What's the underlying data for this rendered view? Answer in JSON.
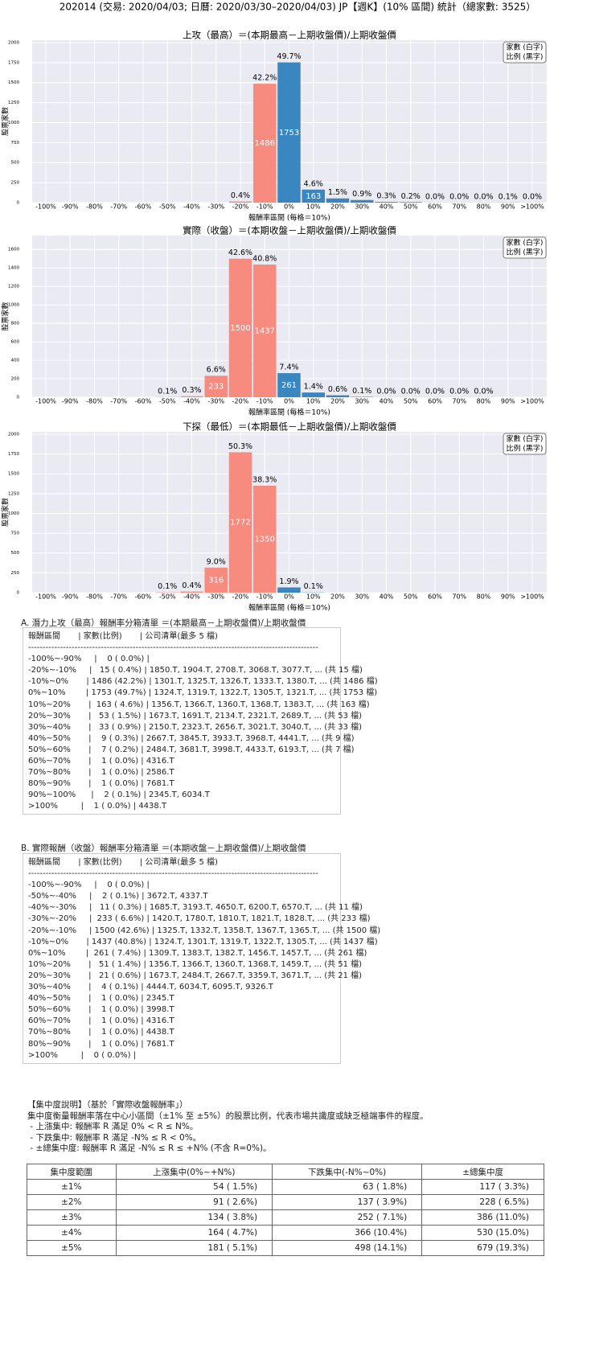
{
  "header": {
    "title": "202014 (交易: 2020/04/03; 日曆: 2020/03/30–2020/04/03) JP【週K】(10% 區間) 統計（總家數: 3525）"
  },
  "chart_data": [
    {
      "type": "bar",
      "title": "上攻（最高）＝(本期最高－上期收盤價)/上期收盤價",
      "y_label": "股票家數",
      "x_label": "報酬率區間 (每格＝10%)",
      "legend": [
        "家數 (白字)",
        "比例 (黑字)"
      ],
      "categories": [
        "-100%",
        "-90%",
        "-80%",
        "-70%",
        "-60%",
        "-50%",
        "-40%",
        "-30%",
        "-20%",
        "-10%",
        "0%",
        "10%",
        "20%",
        "30%",
        "40%",
        "50%",
        "60%",
        "70%",
        "80%",
        "90%",
        ">100%"
      ],
      "values": [
        0,
        null,
        null,
        null,
        null,
        null,
        null,
        null,
        15,
        1486,
        1753,
        163,
        53,
        33,
        9,
        7,
        1,
        1,
        1,
        2,
        1
      ],
      "pct_labels": [
        null,
        null,
        null,
        null,
        null,
        null,
        null,
        null,
        "0.4%",
        "42.2%",
        "49.7%",
        "4.6%",
        "1.5%",
        "0.9%",
        "0.3%",
        "0.2%",
        "0.0%",
        "0.0%",
        "0.0%",
        "0.1%",
        "0.0%"
      ],
      "colors": [
        "#f78b7f",
        "#f78b7f",
        "#f78b7f",
        "#f78b7f",
        "#f78b7f",
        "#f78b7f",
        "#f78b7f",
        "#f78b7f",
        "#f78b7f",
        "#f78b7f",
        "#3a86c0",
        "#3a86c0",
        "#3a86c0",
        "#3a86c0",
        "#3a86c0",
        "#3a86c0",
        "#3a86c0",
        "#3a86c0",
        "#3a86c0",
        "#3a86c0",
        "#3a86c0"
      ],
      "ylim": [
        0,
        2030
      ],
      "yticks": [
        0,
        250,
        500,
        750,
        1000,
        1250,
        1500,
        1750,
        2000
      ],
      "grid": true
    },
    {
      "type": "bar",
      "title": "實際（收盤）＝(本期收盤－上期收盤價)/上期收盤價",
      "y_label": "股票家數",
      "x_label": "報酬率區間 (每格＝10%)",
      "legend": [
        "家數 (白字)",
        "比例 (黑字)"
      ],
      "categories": [
        "-100%",
        "-90%",
        "-80%",
        "-70%",
        "-60%",
        "-50%",
        "-40%",
        "-30%",
        "-20%",
        "-10%",
        "0%",
        "10%",
        "20%",
        "30%",
        "40%",
        "50%",
        "60%",
        "70%",
        "80%",
        "90%",
        ">100%"
      ],
      "values": [
        0,
        null,
        null,
        null,
        null,
        2,
        11,
        233,
        1500,
        1437,
        261,
        51,
        21,
        4,
        1,
        1,
        1,
        1,
        1,
        null,
        0
      ],
      "pct_labels": [
        null,
        null,
        null,
        null,
        null,
        "0.1%",
        "0.3%",
        "6.6%",
        "42.6%",
        "40.8%",
        "7.4%",
        "1.4%",
        "0.6%",
        "0.1%",
        "0.0%",
        "0.0%",
        "0.0%",
        "0.0%",
        "0.0%",
        null,
        null
      ],
      "colors": [
        "#f78b7f",
        "#f78b7f",
        "#f78b7f",
        "#f78b7f",
        "#f78b7f",
        "#f78b7f",
        "#f78b7f",
        "#f78b7f",
        "#f78b7f",
        "#f78b7f",
        "#3a86c0",
        "#3a86c0",
        "#3a86c0",
        "#3a86c0",
        "#3a86c0",
        "#3a86c0",
        "#3a86c0",
        "#3a86c0",
        "#3a86c0",
        "#3a86c0",
        "#3a86c0"
      ],
      "ylim": [
        0,
        1750
      ],
      "yticks": [
        0,
        200,
        400,
        600,
        800,
        1000,
        1200,
        1400,
        1600
      ],
      "grid": true
    },
    {
      "type": "bar",
      "title": "下探（最低）＝(本期最低－上期收盤價)/上期收盤價",
      "y_label": "股票家數",
      "x_label": "報酬率區間 (每格＝10%)",
      "legend": [
        "家數 (白字)",
        "比例 (黑字)"
      ],
      "categories": [
        "-100%",
        "-90%",
        "-80%",
        "-70%",
        "-60%",
        "-50%",
        "-40%",
        "-30%",
        "-20%",
        "-10%",
        "0%",
        "10%",
        "20%",
        "30%",
        "40%",
        "50%",
        "60%",
        "70%",
        "80%",
        "90%",
        ">100%"
      ],
      "values": [
        null,
        null,
        null,
        null,
        null,
        4,
        14,
        316,
        1772,
        1350,
        66,
        3,
        null,
        null,
        null,
        null,
        null,
        null,
        null,
        null,
        null
      ],
      "pct_labels": [
        null,
        null,
        null,
        null,
        null,
        "0.1%",
        "0.4%",
        "9.0%",
        "50.3%",
        "38.3%",
        "1.9%",
        "0.1%",
        null,
        null,
        null,
        null,
        null,
        null,
        null,
        null,
        null
      ],
      "colors": [
        "#f78b7f",
        "#f78b7f",
        "#f78b7f",
        "#f78b7f",
        "#f78b7f",
        "#f78b7f",
        "#f78b7f",
        "#f78b7f",
        "#f78b7f",
        "#f78b7f",
        "#3a86c0",
        "#3a86c0",
        "#3a86c0",
        "#3a86c0",
        "#3a86c0",
        "#3a86c0",
        "#3a86c0",
        "#3a86c0",
        "#3a86c0",
        "#3a86c0",
        "#3a86c0"
      ],
      "ylim": [
        0,
        2030
      ],
      "yticks": [
        0,
        250,
        500,
        750,
        1000,
        1250,
        1500,
        1750,
        2000
      ],
      "grid": true
    }
  ],
  "list_a": {
    "title": "A. 潛力上攻（最高）報酬率分箱清單 ＝(本期最高－上期收盤價)/上期收盤價",
    "header": "報酬區間       | 家數(比例)       | 公司清單(最多 5 檔)",
    "separator": "----------------------------------------------------------------------------------------------------",
    "rows": [
      "-100%~-90%     |    0 ( 0.0%) |",
      "-20%~-10%     |   15 ( 0.4%) | 1850.T, 1904.T, 2708.T, 3068.T, 3077.T, ... (共 15 檔)",
      "-10%~0%       | 1486 (42.2%) | 1301.T, 1325.T, 1326.T, 1333.T, 1380.T, ... (共 1486 檔)",
      "0%~10%        | 1753 (49.7%) | 1324.T, 1319.T, 1322.T, 1305.T, 1321.T, ... (共 1753 檔)",
      "10%~20%       |  163 ( 4.6%) | 1356.T, 1366.T, 1360.T, 1368.T, 1383.T, ... (共 163 檔)",
      "20%~30%       |   53 ( 1.5%) | 1673.T, 1691.T, 2134.T, 2321.T, 2689.T, ... (共 53 檔)",
      "30%~40%       |   33 ( 0.9%) | 2150.T, 2323.T, 2656.T, 3021.T, 3040.T, ... (共 33 檔)",
      "40%~50%       |    9 ( 0.3%) | 2667.T, 3845.T, 3933.T, 3968.T, 4441.T, ... (共 9 檔)",
      "50%~60%       |    7 ( 0.2%) | 2484.T, 3681.T, 3998.T, 4433.T, 6193.T, ... (共 7 檔)",
      "60%~70%       |    1 ( 0.0%) | 4316.T",
      "70%~80%       |    1 ( 0.0%) | 2586.T",
      "80%~90%       |    1 ( 0.0%) | 7681.T",
      "90%~100%      |    2 ( 0.1%) | 2345.T, 6034.T",
      ">100%         |    1 ( 0.0%) | 4438.T"
    ]
  },
  "list_b": {
    "title": "B. 實際報酬（收盤）報酬率分箱清單 ＝(本期收盤－上期收盤價)/上期收盤價",
    "header": "報酬區間       | 家數(比例)       | 公司清單(最多 5 檔)",
    "separator": "----------------------------------------------------------------------------------------------------",
    "rows": [
      "-100%~-90%     |    0 ( 0.0%) |",
      "-50%~-40%     |    2 ( 0.1%) | 3672.T, 4337.T",
      "-40%~-30%     |   11 ( 0.3%) | 1685.T, 3193.T, 4650.T, 6200.T, 6570.T, ... (共 11 檔)",
      "-30%~-20%     |  233 ( 6.6%) | 1420.T, 1780.T, 1810.T, 1821.T, 1828.T, ... (共 233 檔)",
      "-20%~-10%     | 1500 (42.6%) | 1325.T, 1332.T, 1358.T, 1367.T, 1365.T, ... (共 1500 檔)",
      "-10%~0%       | 1437 (40.8%) | 1324.T, 1301.T, 1319.T, 1322.T, 1305.T, ... (共 1437 檔)",
      "0%~10%        |  261 ( 7.4%) | 1309.T, 1383.T, 1382.T, 1456.T, 1457.T, ... (共 261 檔)",
      "10%~20%       |   51 ( 1.4%) | 1356.T, 1366.T, 1360.T, 1368.T, 1459.T, ... (共 51 檔)",
      "20%~30%       |   21 ( 0.6%) | 1673.T, 2484.T, 2667.T, 3359.T, 3671.T, ... (共 21 檔)",
      "30%~40%       |    4 ( 0.1%) | 4444.T, 6034.T, 6095.T, 9326.T",
      "40%~50%       |    1 ( 0.0%) | 2345.T",
      "50%~60%       |    1 ( 0.0%) | 3998.T",
      "60%~70%       |    1 ( 0.0%) | 4316.T",
      "70%~80%       |    1 ( 0.0%) | 4438.T",
      "80%~90%       |    1 ( 0.0%) | 7681.T",
      ">100%         |    0 ( 0.0%) |"
    ]
  },
  "explanation": {
    "title": "【集中度說明】（基於「實際收盤報酬率」）",
    "description": "集中度衡量報酬率落在中心小區間（±1% 至 ±5%）的股票比例，代表市場共識度或缺乏極端事件的程度。",
    "bullets": [
      " - 上漲集中: 報酬率 R 滿足 0% < R ≤ N%。",
      " - 下跌集中: 報酬率 R 滿足 -N% ≤ R < 0%。",
      " - ±總集中度: 報酬率 R 滿足 -N% ≤ R ≤ +N% (不含 R=0%)。"
    ]
  },
  "table": {
    "columns": [
      "集中度範圍",
      "上漲集中(0%~+N%)",
      "下跌集中(-N%~0%)",
      "±總集中度"
    ],
    "rows": [
      [
        "±1%",
        "54 ( 1.5%)",
        "63 ( 1.8%)",
        "117 ( 3.3%)"
      ],
      [
        "±2%",
        "91 ( 2.6%)",
        "137 ( 3.9%)",
        "228 ( 6.5%)"
      ],
      [
        "±3%",
        "134 ( 3.8%)",
        "252 ( 7.1%)",
        "386 (11.0%)"
      ],
      [
        "±4%",
        "164 ( 4.7%)",
        "366 (10.4%)",
        "530 (15.0%)"
      ],
      [
        "±5%",
        "181 ( 5.1%)",
        "498 (14.1%)",
        "679 (19.3%)"
      ]
    ]
  }
}
